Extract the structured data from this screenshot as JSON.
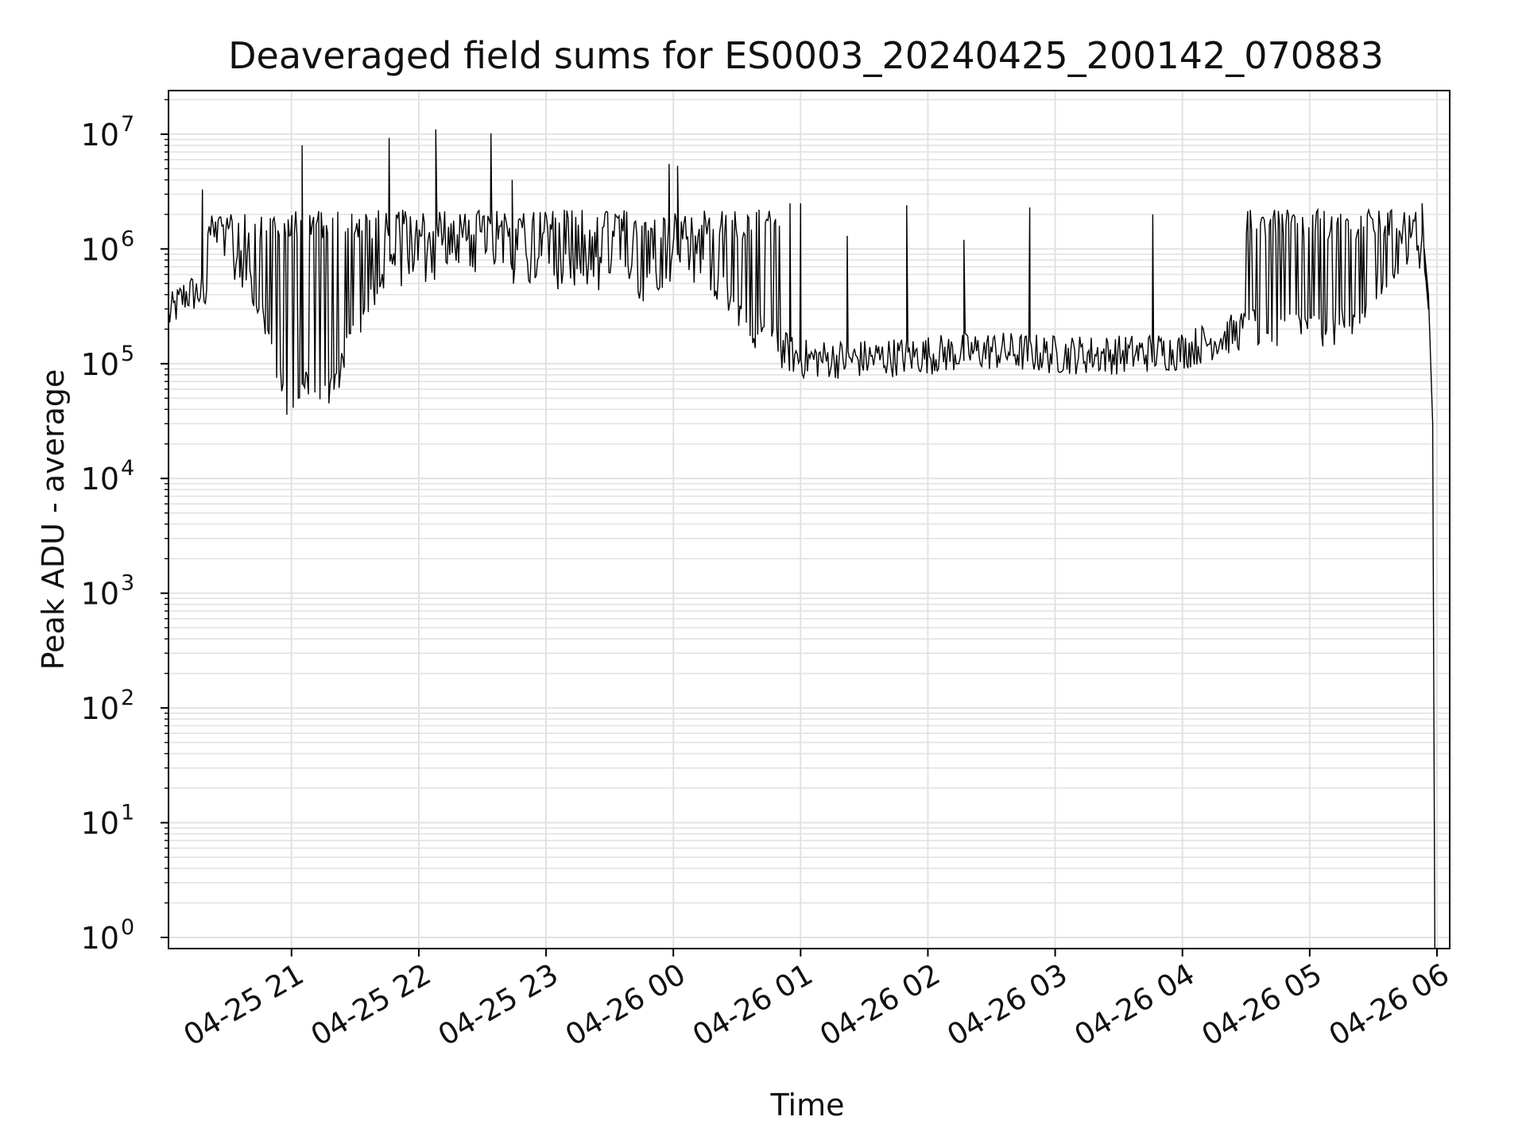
{
  "chart_data": {
    "type": "line",
    "title": "Deaveraged field sums for ES0003_20240425_200142_070883",
    "xlabel": "Time",
    "ylabel": "Peak ADU - average",
    "yscale": "log",
    "ylim": [
      0.8,
      24000000
    ],
    "xlim": [
      "04-25 20:02",
      "04-26 06:06"
    ],
    "grid": "on (major and minor)",
    "colors": {
      "line": "#000000",
      "grid": "#e2e2e2",
      "axes": "#000000"
    },
    "x_tick_labels": [
      "04-25 21",
      "04-25 22",
      "04-25 23",
      "04-26 00",
      "04-26 01",
      "04-26 02",
      "04-26 03",
      "04-26 04",
      "04-26 05",
      "04-26 06"
    ],
    "y_tick_labels": [
      {
        "base": "10",
        "exp": "0"
      },
      {
        "base": "10",
        "exp": "1"
      },
      {
        "base": "10",
        "exp": "2"
      },
      {
        "base": "10",
        "exp": "3"
      },
      {
        "base": "10",
        "exp": "4"
      },
      {
        "base": "10",
        "exp": "5"
      },
      {
        "base": "10",
        "exp": "6"
      },
      {
        "base": "10",
        "exp": "7"
      }
    ],
    "series": [
      {
        "x": [
          "04-25 20:02",
          "04-25 20:10",
          "04-25 20:17",
          "04-25 20:20",
          "04-25 20:22",
          "04-25 20:30",
          "04-25 20:40",
          "04-25 20:48",
          "04-25 20:55",
          "04-25 21:00",
          "04-25 21:05",
          "04-25 21:15",
          "04-25 21:25",
          "04-25 21:35",
          "04-25 21:45",
          "04-25 22:00",
          "04-25 22:15",
          "04-25 22:30",
          "04-25 22:45",
          "04-25 23:00",
          "04-25 23:15",
          "04-25 23:30",
          "04-25 23:45",
          "04-26 00:00",
          "04-26 00:15",
          "04-26 00:30",
          "04-26 00:45",
          "04-26 01:00",
          "04-26 01:30",
          "04-26 02:00",
          "04-26 02:30",
          "04-26 03:00",
          "04-26 03:30",
          "04-26 04:00",
          "04-26 04:30",
          "04-26 05:00",
          "04-26 05:20",
          "04-26 05:30",
          "04-26 05:45",
          "04-26 05:54",
          "04-26 05:56",
          "04-26 05:58",
          "04-26 05:59"
        ],
        "y": [
          260000,
          400000,
          420000,
          340000,
          1000000,
          900000,
          600000,
          200000,
          60000,
          30000,
          80000,
          40000,
          120000,
          300000,
          600000,
          700000,
          900000,
          800000,
          700000,
          700000,
          600000,
          600000,
          500000,
          800000,
          600000,
          300000,
          150000,
          110000,
          110000,
          120000,
          130000,
          120000,
          120000,
          130000,
          200000,
          200000,
          200000,
          400000,
          1000000,
          1000000,
          400000,
          30000,
          0.8
        ],
        "spikes": [
          {
            "x": "04-25 20:18",
            "y": 3300000
          },
          {
            "x": "04-25 21:05",
            "y": 8000000
          },
          {
            "x": "04-25 21:46",
            "y": 9300000
          },
          {
            "x": "04-25 22:08",
            "y": 11000000
          },
          {
            "x": "04-25 22:34",
            "y": 10200000
          },
          {
            "x": "04-25 22:44",
            "y": 4000000
          },
          {
            "x": "04-25 23:58",
            "y": 5500000
          },
          {
            "x": "04-26 00:02",
            "y": 5300000
          },
          {
            "x": "04-26 00:55",
            "y": 2500000
          },
          {
            "x": "04-26 01:00",
            "y": 2500000
          },
          {
            "x": "04-26 01:22",
            "y": 1300000
          },
          {
            "x": "04-26 01:50",
            "y": 2400000
          },
          {
            "x": "04-26 02:17",
            "y": 1200000
          },
          {
            "x": "04-26 02:48",
            "y": 2300000
          },
          {
            "x": "04-26 03:46",
            "y": 2000000
          },
          {
            "x": "04-26 05:53",
            "y": 2500000
          }
        ]
      }
    ]
  }
}
